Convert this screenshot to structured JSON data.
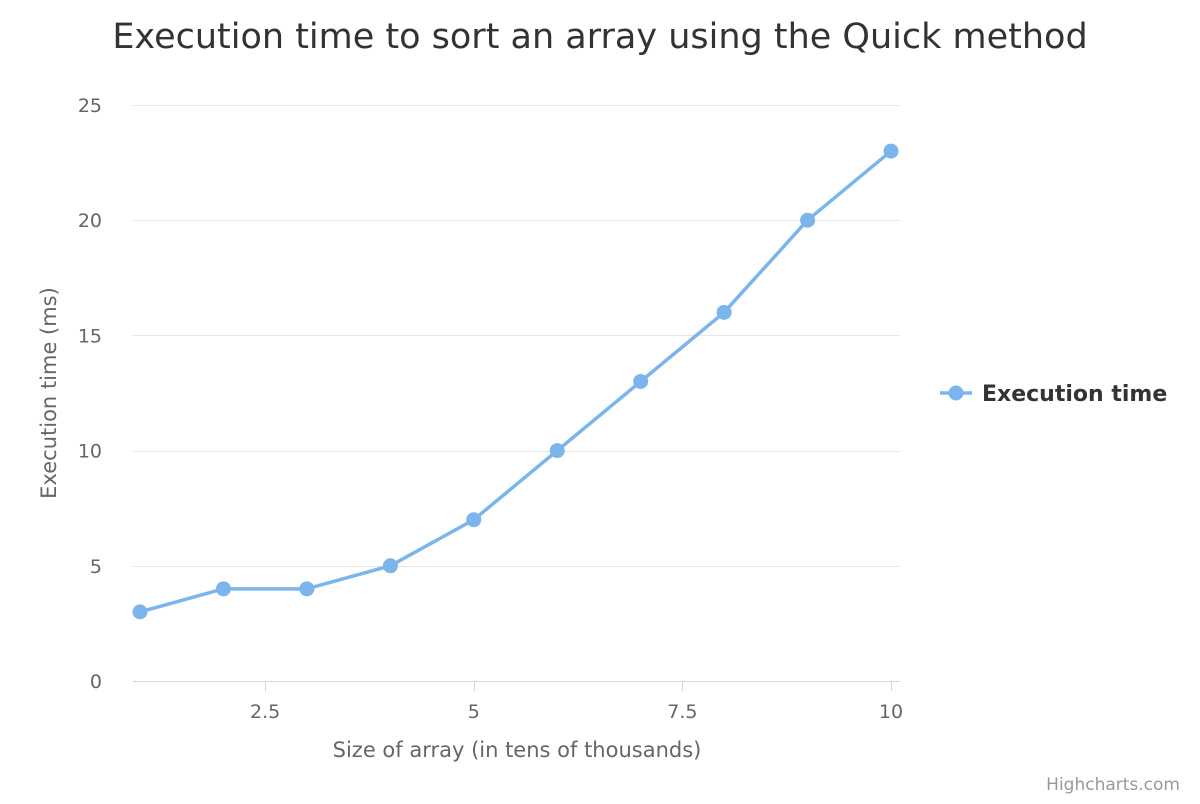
{
  "chart_data": {
    "type": "line",
    "title": "Execution time to sort an array using the Quick method",
    "xlabel": "Size of array (in tens of thousands)",
    "ylabel": "Execution time (ms)",
    "xlim": [
      1,
      10
    ],
    "ylim": [
      0,
      25
    ],
    "x_ticks": [
      2.5,
      5,
      7.5,
      10
    ],
    "x_tick_labels": [
      "2.5",
      "5",
      "7.5",
      "10"
    ],
    "y_ticks": [
      0,
      5,
      10,
      15,
      20,
      25
    ],
    "y_tick_labels": [
      "0",
      "5",
      "10",
      "15",
      "20",
      "25"
    ],
    "grid": true,
    "legend_position": "right",
    "series": [
      {
        "name": "Execution time",
        "color": "#7cb5ec",
        "x": [
          1,
          2,
          3,
          4,
          5,
          6,
          7,
          8,
          9,
          10
        ],
        "values": [
          3,
          4,
          4,
          5,
          7,
          10,
          13,
          16,
          20,
          23
        ]
      }
    ]
  },
  "credits": "Highcharts.com"
}
